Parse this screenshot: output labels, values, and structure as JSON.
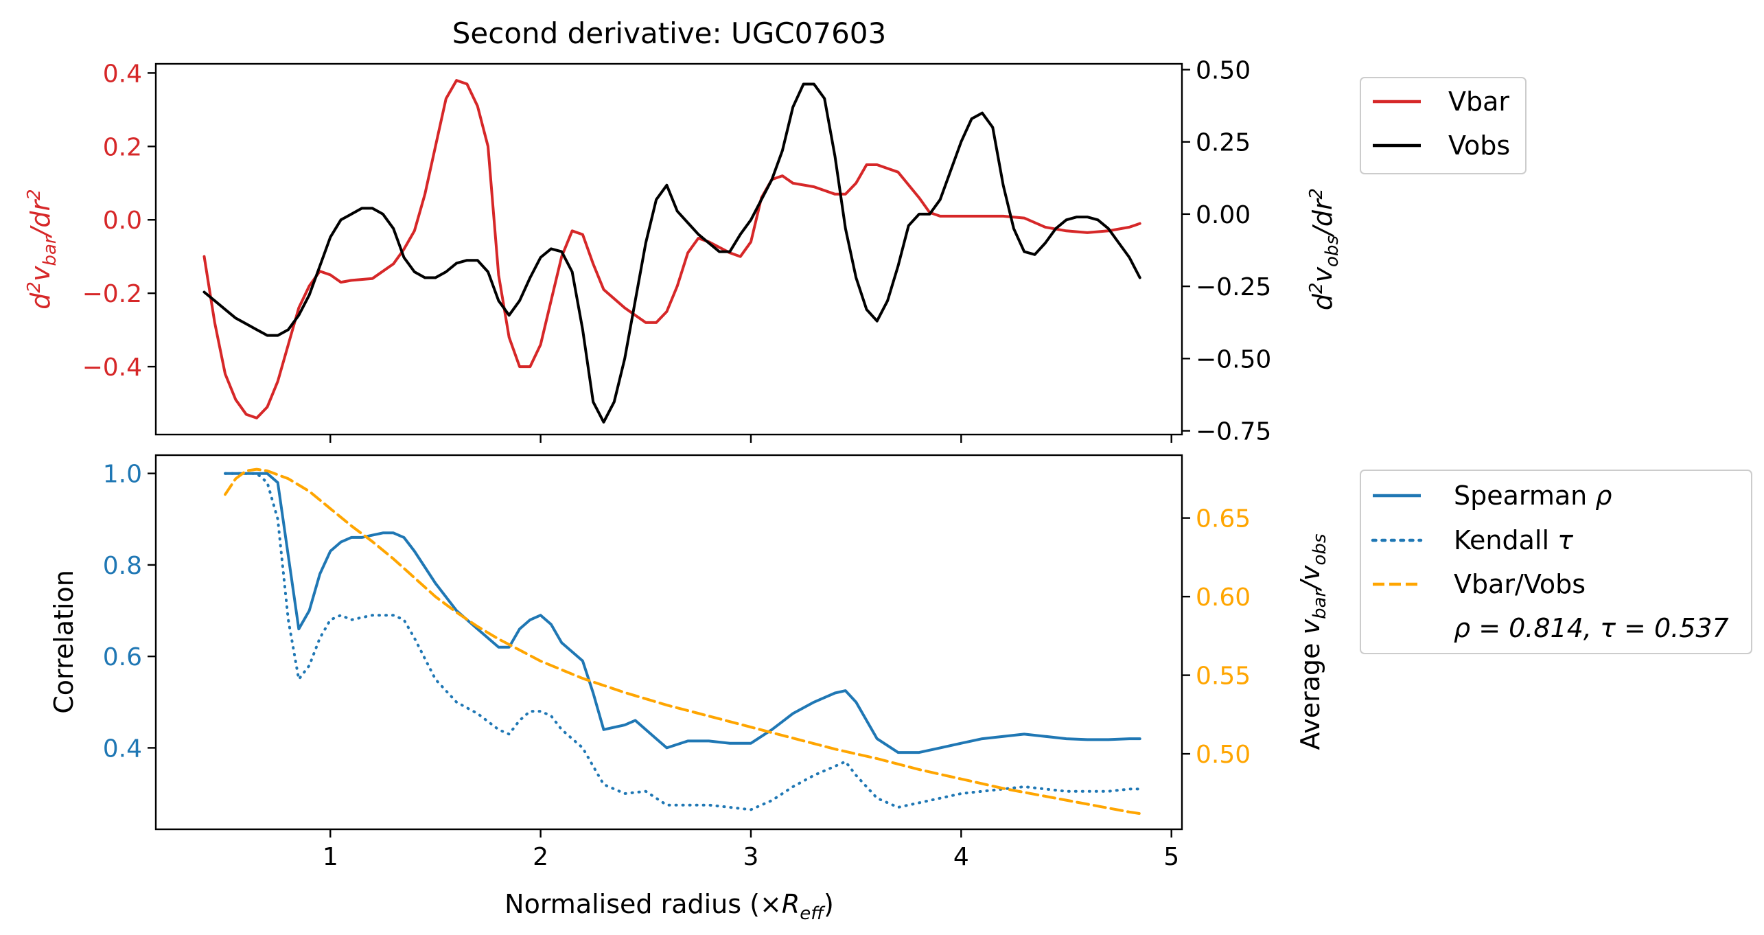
{
  "figure": {
    "title": "Second derivative: UGC07603"
  },
  "colors": {
    "vbar": "#d62728",
    "vobs": "#000000",
    "spearman": "#1f77b4",
    "ratio": "#ffa500",
    "axis": "#000000"
  },
  "chart_data": [
    {
      "type": "line",
      "title": "Second derivative: UGC07603",
      "xlabel": "",
      "ylabel_left": "d²v_bar/dr²",
      "ylabel_right": "d²v_obs/dr²",
      "xlim": [
        0.17,
        5.05
      ],
      "ylim_left": [
        -0.585,
        0.425
      ],
      "ylim_right": [
        -0.763,
        0.52
      ],
      "left_ticks": [
        "−0.4",
        "−0.2",
        "0.0",
        "0.2",
        "0.4"
      ],
      "right_ticks": [
        "−0.75",
        "−0.50",
        "−0.25",
        "0.00",
        "0.25",
        "0.50"
      ],
      "legend": {
        "placement": "outside-right-top",
        "entries": [
          "Vbar",
          "Vobs"
        ]
      },
      "series": [
        {
          "name": "Vbar",
          "axis": "left",
          "color": "#d62728",
          "x": [
            0.4,
            0.45,
            0.5,
            0.55,
            0.6,
            0.65,
            0.7,
            0.75,
            0.8,
            0.85,
            0.9,
            0.95,
            1.0,
            1.05,
            1.1,
            1.2,
            1.3,
            1.35,
            1.4,
            1.45,
            1.5,
            1.55,
            1.6,
            1.65,
            1.7,
            1.75,
            1.8,
            1.85,
            1.9,
            1.95,
            2.0,
            2.05,
            2.1,
            2.15,
            2.2,
            2.25,
            2.3,
            2.4,
            2.5,
            2.55,
            2.6,
            2.65,
            2.7,
            2.75,
            2.8,
            2.9,
            2.95,
            3.0,
            3.05,
            3.1,
            3.15,
            3.2,
            3.3,
            3.4,
            3.45,
            3.5,
            3.55,
            3.6,
            3.7,
            3.8,
            3.85,
            3.9,
            4.0,
            4.1,
            4.2,
            4.3,
            4.4,
            4.5,
            4.6,
            4.7,
            4.8,
            4.85
          ],
          "values": [
            -0.1,
            -0.28,
            -0.42,
            -0.49,
            -0.53,
            -0.54,
            -0.51,
            -0.44,
            -0.34,
            -0.24,
            -0.18,
            -0.14,
            -0.15,
            -0.17,
            -0.165,
            -0.16,
            -0.12,
            -0.08,
            -0.03,
            0.07,
            0.2,
            0.33,
            0.38,
            0.37,
            0.31,
            0.2,
            -0.15,
            -0.32,
            -0.4,
            -0.4,
            -0.34,
            -0.22,
            -0.1,
            -0.03,
            -0.04,
            -0.12,
            -0.19,
            -0.24,
            -0.28,
            -0.28,
            -0.25,
            -0.18,
            -0.09,
            -0.05,
            -0.06,
            -0.09,
            -0.1,
            -0.06,
            0.06,
            0.11,
            0.12,
            0.1,
            0.09,
            0.07,
            0.07,
            0.1,
            0.15,
            0.15,
            0.13,
            0.06,
            0.02,
            0.01,
            0.01,
            0.01,
            0.01,
            0.005,
            -0.02,
            -0.03,
            -0.035,
            -0.03,
            -0.02,
            -0.01
          ]
        },
        {
          "name": "Vobs",
          "axis": "right",
          "color": "#000000",
          "x": [
            0.4,
            0.45,
            0.5,
            0.55,
            0.6,
            0.65,
            0.7,
            0.75,
            0.8,
            0.85,
            0.9,
            0.95,
            1.0,
            1.05,
            1.1,
            1.15,
            1.2,
            1.25,
            1.3,
            1.35,
            1.4,
            1.45,
            1.5,
            1.55,
            1.6,
            1.65,
            1.7,
            1.75,
            1.8,
            1.85,
            1.9,
            1.95,
            2.0,
            2.05,
            2.1,
            2.15,
            2.2,
            2.25,
            2.3,
            2.35,
            2.4,
            2.45,
            2.5,
            2.55,
            2.6,
            2.65,
            2.7,
            2.75,
            2.8,
            2.85,
            2.9,
            2.95,
            3.0,
            3.05,
            3.1,
            3.15,
            3.2,
            3.25,
            3.3,
            3.35,
            3.4,
            3.45,
            3.5,
            3.55,
            3.6,
            3.65,
            3.7,
            3.75,
            3.8,
            3.85,
            3.9,
            3.95,
            4.0,
            4.05,
            4.1,
            4.15,
            4.2,
            4.25,
            4.3,
            4.35,
            4.4,
            4.45,
            4.5,
            4.55,
            4.6,
            4.65,
            4.7,
            4.75,
            4.8,
            4.85
          ],
          "values": [
            -0.27,
            -0.3,
            -0.33,
            -0.36,
            -0.38,
            -0.4,
            -0.42,
            -0.42,
            -0.4,
            -0.35,
            -0.28,
            -0.18,
            -0.08,
            -0.02,
            0.0,
            0.02,
            0.02,
            0.0,
            -0.05,
            -0.15,
            -0.2,
            -0.22,
            -0.22,
            -0.2,
            -0.17,
            -0.16,
            -0.16,
            -0.2,
            -0.3,
            -0.35,
            -0.3,
            -0.22,
            -0.15,
            -0.12,
            -0.13,
            -0.2,
            -0.4,
            -0.65,
            -0.72,
            -0.65,
            -0.5,
            -0.3,
            -0.1,
            0.05,
            0.1,
            0.01,
            -0.03,
            -0.07,
            -0.1,
            -0.13,
            -0.13,
            -0.07,
            -0.02,
            0.05,
            0.12,
            0.22,
            0.37,
            0.45,
            0.45,
            0.4,
            0.2,
            -0.05,
            -0.22,
            -0.33,
            -0.37,
            -0.3,
            -0.18,
            -0.04,
            0.0,
            0.0,
            0.05,
            0.15,
            0.25,
            0.33,
            0.35,
            0.3,
            0.1,
            -0.05,
            -0.13,
            -0.14,
            -0.1,
            -0.05,
            -0.02,
            -0.01,
            -0.01,
            -0.02,
            -0.05,
            -0.1,
            -0.15,
            -0.22
          ]
        }
      ]
    },
    {
      "type": "line",
      "xlabel": "Normalised radius (×R_eff)",
      "ylabel_left": "Correlation",
      "ylabel_right": "Average v_bar/v_obs",
      "xlim": [
        0.17,
        5.05
      ],
      "ylim_left": [
        0.222,
        1.04
      ],
      "ylim_right": [
        0.452,
        0.69
      ],
      "x_ticks": [
        "1",
        "2",
        "3",
        "4",
        "5"
      ],
      "left_ticks": [
        "0.4",
        "0.6",
        "0.8",
        "1.0"
      ],
      "right_ticks": [
        "0.50",
        "0.55",
        "0.60",
        "0.65"
      ],
      "legend": {
        "placement": "outside-right",
        "entries": [
          "Spearman ρ",
          "Kendall τ",
          "Vbar/Vobs"
        ]
      },
      "annotation": "ρ = 0.814, τ = 0.537",
      "series": [
        {
          "name": "Spearman ρ",
          "axis": "left",
          "style": "solid",
          "color": "#1f77b4",
          "x": [
            0.5,
            0.55,
            0.6,
            0.65,
            0.7,
            0.75,
            0.8,
            0.85,
            0.9,
            0.95,
            1.0,
            1.05,
            1.1,
            1.15,
            1.2,
            1.25,
            1.3,
            1.35,
            1.4,
            1.5,
            1.6,
            1.7,
            1.8,
            1.85,
            1.9,
            1.95,
            2.0,
            2.05,
            2.1,
            2.15,
            2.2,
            2.25,
            2.3,
            2.4,
            2.45,
            2.5,
            2.55,
            2.6,
            2.7,
            2.8,
            2.9,
            3.0,
            3.1,
            3.2,
            3.3,
            3.4,
            3.45,
            3.5,
            3.6,
            3.7,
            3.8,
            3.9,
            4.0,
            4.1,
            4.2,
            4.3,
            4.4,
            4.5,
            4.6,
            4.7,
            4.8,
            4.85
          ],
          "values": [
            1.0,
            1.0,
            1.0,
            1.0,
            1.0,
            0.98,
            0.82,
            0.66,
            0.7,
            0.78,
            0.83,
            0.85,
            0.86,
            0.86,
            0.865,
            0.87,
            0.87,
            0.86,
            0.83,
            0.76,
            0.7,
            0.66,
            0.62,
            0.62,
            0.66,
            0.68,
            0.69,
            0.67,
            0.63,
            0.61,
            0.59,
            0.52,
            0.44,
            0.45,
            0.46,
            0.44,
            0.42,
            0.4,
            0.415,
            0.415,
            0.41,
            0.41,
            0.44,
            0.475,
            0.5,
            0.52,
            0.525,
            0.5,
            0.42,
            0.39,
            0.39,
            0.4,
            0.41,
            0.42,
            0.425,
            0.43,
            0.425,
            0.42,
            0.418,
            0.418,
            0.42,
            0.42
          ]
        },
        {
          "name": "Kendall τ",
          "axis": "left",
          "style": "dotted",
          "color": "#1f77b4",
          "x": [
            0.5,
            0.55,
            0.6,
            0.65,
            0.7,
            0.75,
            0.8,
            0.85,
            0.9,
            0.95,
            1.0,
            1.05,
            1.1,
            1.15,
            1.2,
            1.25,
            1.3,
            1.35,
            1.4,
            1.5,
            1.6,
            1.7,
            1.8,
            1.85,
            1.9,
            1.95,
            2.0,
            2.05,
            2.1,
            2.15,
            2.2,
            2.25,
            2.3,
            2.4,
            2.5,
            2.55,
            2.6,
            2.7,
            2.8,
            2.9,
            3.0,
            3.1,
            3.2,
            3.3,
            3.4,
            3.45,
            3.5,
            3.6,
            3.7,
            3.8,
            3.9,
            4.0,
            4.1,
            4.2,
            4.3,
            4.4,
            4.5,
            4.6,
            4.7,
            4.8,
            4.85
          ],
          "values": [
            1.0,
            1.0,
            1.0,
            1.0,
            0.98,
            0.9,
            0.68,
            0.55,
            0.58,
            0.64,
            0.68,
            0.69,
            0.68,
            0.685,
            0.69,
            0.69,
            0.69,
            0.68,
            0.64,
            0.55,
            0.5,
            0.475,
            0.44,
            0.43,
            0.46,
            0.48,
            0.48,
            0.47,
            0.44,
            0.42,
            0.4,
            0.36,
            0.32,
            0.3,
            0.305,
            0.29,
            0.275,
            0.275,
            0.275,
            0.27,
            0.265,
            0.285,
            0.315,
            0.34,
            0.36,
            0.37,
            0.34,
            0.29,
            0.27,
            0.28,
            0.29,
            0.3,
            0.305,
            0.31,
            0.315,
            0.31,
            0.305,
            0.305,
            0.305,
            0.31,
            0.31
          ]
        },
        {
          "name": "Vbar/Vobs",
          "axis": "right",
          "style": "dashed",
          "color": "#ffa500",
          "x": [
            0.5,
            0.55,
            0.6,
            0.65,
            0.7,
            0.8,
            0.9,
            1.0,
            1.1,
            1.2,
            1.3,
            1.4,
            1.5,
            1.6,
            1.7,
            1.8,
            1.9,
            2.0,
            2.2,
            2.4,
            2.6,
            2.8,
            3.0,
            3.2,
            3.4,
            3.6,
            3.8,
            4.0,
            4.2,
            4.4,
            4.6,
            4.8,
            4.85
          ],
          "values": [
            0.665,
            0.675,
            0.68,
            0.681,
            0.68,
            0.675,
            0.667,
            0.656,
            0.645,
            0.635,
            0.624,
            0.612,
            0.6,
            0.59,
            0.581,
            0.573,
            0.566,
            0.559,
            0.548,
            0.539,
            0.531,
            0.524,
            0.517,
            0.51,
            0.503,
            0.497,
            0.49,
            0.484,
            0.478,
            0.473,
            0.468,
            0.463,
            0.462
          ]
        }
      ]
    }
  ]
}
